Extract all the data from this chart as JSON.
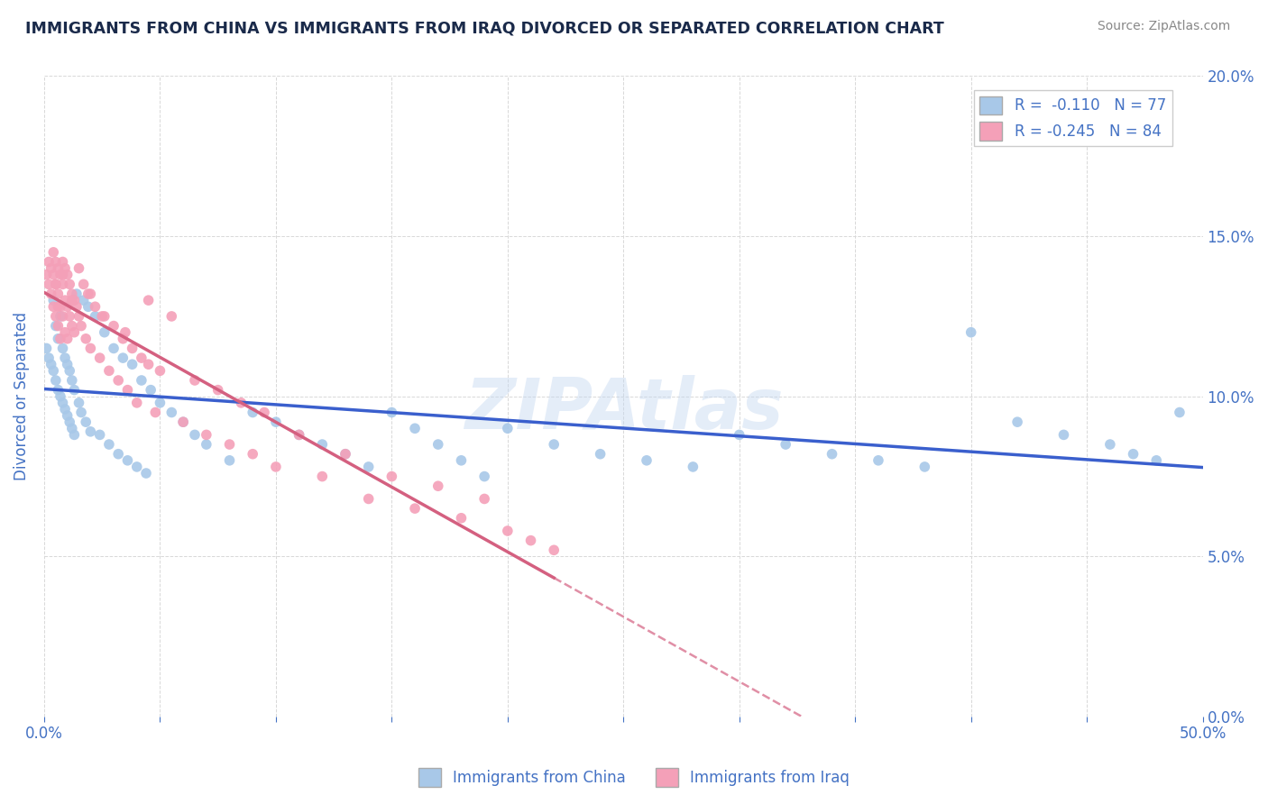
{
  "title": "IMMIGRANTS FROM CHINA VS IMMIGRANTS FROM IRAQ DIVORCED OR SEPARATED CORRELATION CHART",
  "source": "Source: ZipAtlas.com",
  "ylabel": "Divorced or Separated",
  "legend_china": "Immigrants from China",
  "legend_iraq": "Immigrants from Iraq",
  "R_china": -0.11,
  "N_china": 77,
  "R_iraq": -0.245,
  "N_iraq": 84,
  "color_china": "#a8c8e8",
  "color_iraq": "#f4a0b8",
  "line_color_china": "#3a5fcd",
  "line_color_iraq": "#d46080",
  "watermark": "ZIPAtlas",
  "background_color": "#ffffff",
  "grid_color": "#d8d8d8",
  "title_color": "#1a2a4a",
  "label_color": "#4472c4",
  "xmin": 0.0,
  "xmax": 0.5,
  "ymin": 0.0,
  "ymax": 0.2,
  "china_x": [
    0.001,
    0.002,
    0.003,
    0.004,
    0.004,
    0.005,
    0.005,
    0.006,
    0.006,
    0.007,
    0.007,
    0.008,
    0.008,
    0.009,
    0.009,
    0.01,
    0.01,
    0.011,
    0.011,
    0.012,
    0.012,
    0.013,
    0.013,
    0.014,
    0.015,
    0.016,
    0.017,
    0.018,
    0.019,
    0.02,
    0.022,
    0.024,
    0.026,
    0.028,
    0.03,
    0.032,
    0.034,
    0.036,
    0.038,
    0.04,
    0.042,
    0.044,
    0.046,
    0.05,
    0.055,
    0.06,
    0.065,
    0.07,
    0.08,
    0.09,
    0.1,
    0.11,
    0.12,
    0.13,
    0.14,
    0.15,
    0.16,
    0.17,
    0.18,
    0.19,
    0.2,
    0.22,
    0.24,
    0.26,
    0.28,
    0.3,
    0.32,
    0.34,
    0.36,
    0.38,
    0.4,
    0.42,
    0.44,
    0.46,
    0.47,
    0.48,
    0.49
  ],
  "china_y": [
    0.115,
    0.112,
    0.11,
    0.108,
    0.13,
    0.105,
    0.122,
    0.102,
    0.118,
    0.1,
    0.125,
    0.098,
    0.115,
    0.096,
    0.112,
    0.094,
    0.11,
    0.092,
    0.108,
    0.09,
    0.105,
    0.088,
    0.102,
    0.132,
    0.098,
    0.095,
    0.13,
    0.092,
    0.128,
    0.089,
    0.125,
    0.088,
    0.12,
    0.085,
    0.115,
    0.082,
    0.112,
    0.08,
    0.11,
    0.078,
    0.105,
    0.076,
    0.102,
    0.098,
    0.095,
    0.092,
    0.088,
    0.085,
    0.08,
    0.095,
    0.092,
    0.088,
    0.085,
    0.082,
    0.078,
    0.095,
    0.09,
    0.085,
    0.08,
    0.075,
    0.09,
    0.085,
    0.082,
    0.08,
    0.078,
    0.088,
    0.085,
    0.082,
    0.08,
    0.078,
    0.12,
    0.092,
    0.088,
    0.085,
    0.082,
    0.08,
    0.095
  ],
  "iraq_x": [
    0.001,
    0.002,
    0.002,
    0.003,
    0.003,
    0.004,
    0.004,
    0.004,
    0.005,
    0.005,
    0.005,
    0.006,
    0.006,
    0.006,
    0.007,
    0.007,
    0.007,
    0.008,
    0.008,
    0.008,
    0.009,
    0.009,
    0.009,
    0.01,
    0.01,
    0.01,
    0.011,
    0.011,
    0.012,
    0.012,
    0.013,
    0.013,
    0.014,
    0.015,
    0.016,
    0.017,
    0.018,
    0.019,
    0.02,
    0.022,
    0.024,
    0.026,
    0.028,
    0.03,
    0.032,
    0.034,
    0.036,
    0.038,
    0.04,
    0.042,
    0.045,
    0.048,
    0.05,
    0.055,
    0.06,
    0.065,
    0.07,
    0.075,
    0.08,
    0.085,
    0.09,
    0.095,
    0.1,
    0.11,
    0.12,
    0.13,
    0.14,
    0.15,
    0.16,
    0.17,
    0.18,
    0.19,
    0.2,
    0.21,
    0.22,
    0.005,
    0.006,
    0.008,
    0.012,
    0.015,
    0.02,
    0.025,
    0.035,
    0.045
  ],
  "iraq_y": [
    0.138,
    0.142,
    0.135,
    0.14,
    0.132,
    0.145,
    0.138,
    0.128,
    0.142,
    0.135,
    0.125,
    0.14,
    0.132,
    0.122,
    0.138,
    0.128,
    0.118,
    0.142,
    0.135,
    0.125,
    0.14,
    0.13,
    0.12,
    0.138,
    0.128,
    0.118,
    0.135,
    0.125,
    0.132,
    0.122,
    0.13,
    0.12,
    0.128,
    0.125,
    0.122,
    0.135,
    0.118,
    0.132,
    0.115,
    0.128,
    0.112,
    0.125,
    0.108,
    0.122,
    0.105,
    0.118,
    0.102,
    0.115,
    0.098,
    0.112,
    0.13,
    0.095,
    0.108,
    0.125,
    0.092,
    0.105,
    0.088,
    0.102,
    0.085,
    0.098,
    0.082,
    0.095,
    0.078,
    0.088,
    0.075,
    0.082,
    0.068,
    0.075,
    0.065,
    0.072,
    0.062,
    0.068,
    0.058,
    0.055,
    0.052,
    0.135,
    0.128,
    0.138,
    0.13,
    0.14,
    0.132,
    0.125,
    0.12,
    0.11
  ]
}
